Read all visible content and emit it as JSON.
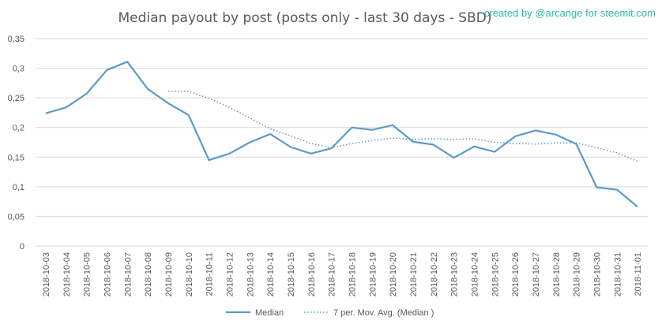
{
  "chart_data": {
    "type": "line",
    "title": "Median payout by post (posts only - last 30 days - SBD)",
    "credit": "created by @arcange for steemit.com",
    "categories": [
      "2018-10-03",
      "2018-10-04",
      "2018-10-05",
      "2018-10-06",
      "2018-10-07",
      "2018-10-08",
      "2018-10-09",
      "2018-10-10",
      "2018-10-11",
      "2018-10-12",
      "2018-10-13",
      "2018-10-14",
      "2018-10-15",
      "2018-10-16",
      "2018-10-17",
      "2018-10-18",
      "2018-10-19",
      "2018-10-20",
      "2018-10-21",
      "2018-10-22",
      "2018-10-23",
      "2018-10-24",
      "2018-10-25",
      "2018-10-26",
      "2018-10-27",
      "2018-10-28",
      "2018-10-29",
      "2018-10-30",
      "2018-10-31",
      "2018-11-01"
    ],
    "y_ticks": [
      "0",
      "0,05",
      "0,1",
      "0,15",
      "0,2",
      "0,25",
      "0,3",
      "0,35"
    ],
    "ylim": [
      0,
      0.35
    ],
    "grid": true,
    "legend_position": "bottom",
    "series": [
      {
        "name": "Median",
        "style": "solid",
        "color": "#5b9bc6",
        "values": [
          0.224,
          0.234,
          0.257,
          0.297,
          0.311,
          0.265,
          0.241,
          0.221,
          0.145,
          0.156,
          0.175,
          0.189,
          0.167,
          0.156,
          0.165,
          0.2,
          0.196,
          0.204,
          0.176,
          0.171,
          0.149,
          0.168,
          0.159,
          0.185,
          0.195,
          0.188,
          0.172,
          0.099,
          0.095,
          0.066
        ]
      },
      {
        "name": "7 per. Mov. Avg. (Median )",
        "style": "dotted",
        "color": "#5b9bc6",
        "values": [
          null,
          null,
          null,
          null,
          null,
          null,
          0.261,
          0.261,
          0.249,
          0.234,
          0.216,
          0.198,
          0.186,
          0.173,
          0.166,
          0.173,
          0.178,
          0.182,
          0.18,
          0.181,
          0.18,
          0.181,
          0.175,
          0.173,
          0.172,
          0.174,
          0.174,
          0.166,
          0.157,
          0.143
        ]
      }
    ]
  }
}
